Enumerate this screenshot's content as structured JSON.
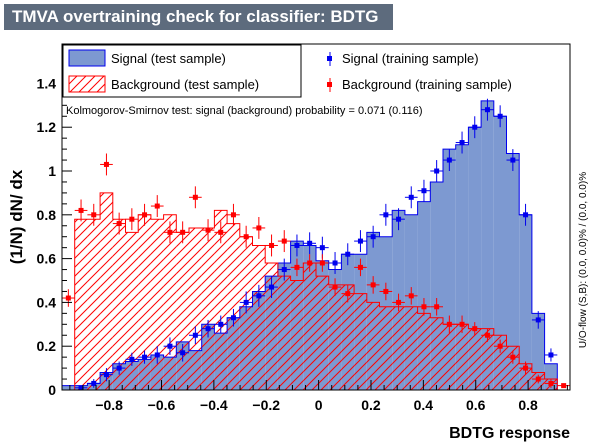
{
  "chart_data": {
    "type": "histogram",
    "title": "TMVA overtraining check for classifier: BDTG",
    "xlabel": "BDTG response",
    "ylabel": "(1/N) dN/ dx",
    "side_label": "U/O-flow (S,B): (0.0, 0.0)% / (0.0, 0.0)%",
    "annotation": "Kolmogorov-Smirnov test: signal (background) probability = 0.071 (0.116)",
    "xlim": [
      -0.98,
      0.96
    ],
    "ylim": [
      0,
      1.58
    ],
    "x_ticks": [
      -0.8,
      -0.6,
      -0.4,
      -0.2,
      0,
      0.2,
      0.4,
      0.6,
      0.8
    ],
    "x_tick_labels": [
      "−0.8",
      "−0.6",
      "−0.4",
      "−0.2",
      "0",
      "0.2",
      "0.4",
      "0.6",
      "0.8"
    ],
    "y_ticks": [
      0,
      0.2,
      0.4,
      0.6,
      0.8,
      1,
      1.2,
      1.4
    ],
    "y_tick_labels": [
      "0",
      "0.2",
      "0.4",
      "0.6",
      "0.8",
      "1",
      "1.2",
      "1.4"
    ],
    "bin_edges": [
      -0.98,
      -0.9315,
      -0.883,
      -0.8345,
      -0.786,
      -0.7375,
      -0.689,
      -0.6405,
      -0.592,
      -0.5435,
      -0.495,
      -0.4465,
      -0.398,
      -0.3495,
      -0.301,
      -0.2525,
      -0.204,
      -0.1555,
      -0.107,
      -0.0585,
      -0.01,
      0.0385,
      0.087,
      0.1355,
      0.184,
      0.2325,
      0.281,
      0.3295,
      0.378,
      0.4265,
      0.475,
      0.5235,
      0.572,
      0.6205,
      0.669,
      0.7175,
      0.766,
      0.8145,
      0.863,
      0.9115,
      0.96
    ],
    "legend": [
      {
        "label": "Signal (test sample)",
        "style": "signal-fill"
      },
      {
        "label": "Signal (training sample)",
        "style": "signal-marker"
      },
      {
        "label": "Background (test sample)",
        "style": "background-hatch"
      },
      {
        "label": "Background (training sample)",
        "style": "background-marker"
      }
    ],
    "series": [
      {
        "name": "Signal (test sample)",
        "kind": "filled-histogram",
        "values": [
          0.02,
          0.02,
          0.03,
          0.08,
          0.12,
          0.13,
          0.14,
          0.16,
          0.15,
          0.22,
          0.18,
          0.3,
          0.26,
          0.33,
          0.38,
          0.45,
          0.52,
          0.58,
          0.68,
          0.66,
          0.59,
          0.55,
          0.62,
          0.62,
          0.72,
          0.7,
          0.82,
          0.8,
          0.86,
          0.95,
          1.1,
          1.12,
          1.2,
          1.32,
          1.25,
          1.08,
          0.8,
          0.35,
          0.12,
          0.0
        ]
      },
      {
        "name": "Signal (training sample)",
        "kind": "markers",
        "values": [
          0.0,
          0.01,
          0.03,
          0.07,
          0.1,
          0.14,
          0.15,
          0.16,
          0.2,
          0.17,
          0.25,
          0.28,
          0.3,
          0.33,
          0.4,
          0.43,
          0.47,
          0.55,
          0.66,
          0.67,
          0.65,
          0.58,
          0.62,
          0.68,
          0.7,
          0.8,
          0.78,
          0.88,
          0.91,
          1.0,
          1.05,
          1.13,
          1.2,
          1.28,
          1.25,
          1.05,
          0.8,
          0.32,
          0.16,
          0.0
        ],
        "errors": [
          0.01,
          0.01,
          0.02,
          0.03,
          0.03,
          0.03,
          0.03,
          0.04,
          0.04,
          0.04,
          0.04,
          0.04,
          0.04,
          0.04,
          0.05,
          0.05,
          0.05,
          0.05,
          0.05,
          0.05,
          0.05,
          0.05,
          0.05,
          0.05,
          0.05,
          0.05,
          0.05,
          0.05,
          0.05,
          0.05,
          0.05,
          0.05,
          0.05,
          0.05,
          0.05,
          0.05,
          0.05,
          0.04,
          0.03,
          0.01
        ]
      },
      {
        "name": "Background (test sample)",
        "kind": "hatched-histogram",
        "values": [
          0.0,
          0.78,
          0.78,
          0.9,
          0.78,
          0.72,
          0.8,
          0.78,
          0.8,
          0.72,
          0.74,
          0.74,
          0.82,
          0.76,
          0.7,
          0.66,
          0.58,
          0.52,
          0.5,
          0.58,
          0.52,
          0.48,
          0.48,
          0.44,
          0.4,
          0.38,
          0.38,
          0.38,
          0.35,
          0.33,
          0.3,
          0.3,
          0.28,
          0.28,
          0.25,
          0.2,
          0.12,
          0.08,
          0.05,
          0.0
        ]
      },
      {
        "name": "Background (training sample)",
        "kind": "markers",
        "values": [
          0.42,
          0.82,
          0.8,
          1.03,
          0.76,
          0.78,
          0.8,
          0.84,
          0.72,
          0.72,
          0.88,
          0.73,
          0.72,
          0.8,
          0.7,
          0.74,
          0.66,
          0.68,
          0.56,
          0.58,
          0.58,
          0.47,
          0.44,
          0.56,
          0.48,
          0.45,
          0.4,
          0.43,
          0.38,
          0.38,
          0.3,
          0.3,
          0.28,
          0.25,
          0.2,
          0.15,
          0.1,
          0.05,
          0.03,
          0.02
        ],
        "errors": [
          0.04,
          0.05,
          0.05,
          0.05,
          0.05,
          0.05,
          0.05,
          0.05,
          0.05,
          0.05,
          0.05,
          0.05,
          0.05,
          0.05,
          0.05,
          0.05,
          0.05,
          0.05,
          0.04,
          0.04,
          0.04,
          0.04,
          0.04,
          0.04,
          0.04,
          0.04,
          0.04,
          0.04,
          0.04,
          0.04,
          0.04,
          0.04,
          0.03,
          0.03,
          0.03,
          0.03,
          0.03,
          0.02,
          0.02,
          0.01
        ]
      }
    ],
    "colors": {
      "signal_fill": "#7d99d1",
      "signal_line": "#0000ee",
      "signal_marker": "#0000ee",
      "background_hatch": "#ff0000",
      "background_marker": "#ff0000",
      "title_bg": "#5d6b7d",
      "title_text": "#ffffff"
    }
  }
}
